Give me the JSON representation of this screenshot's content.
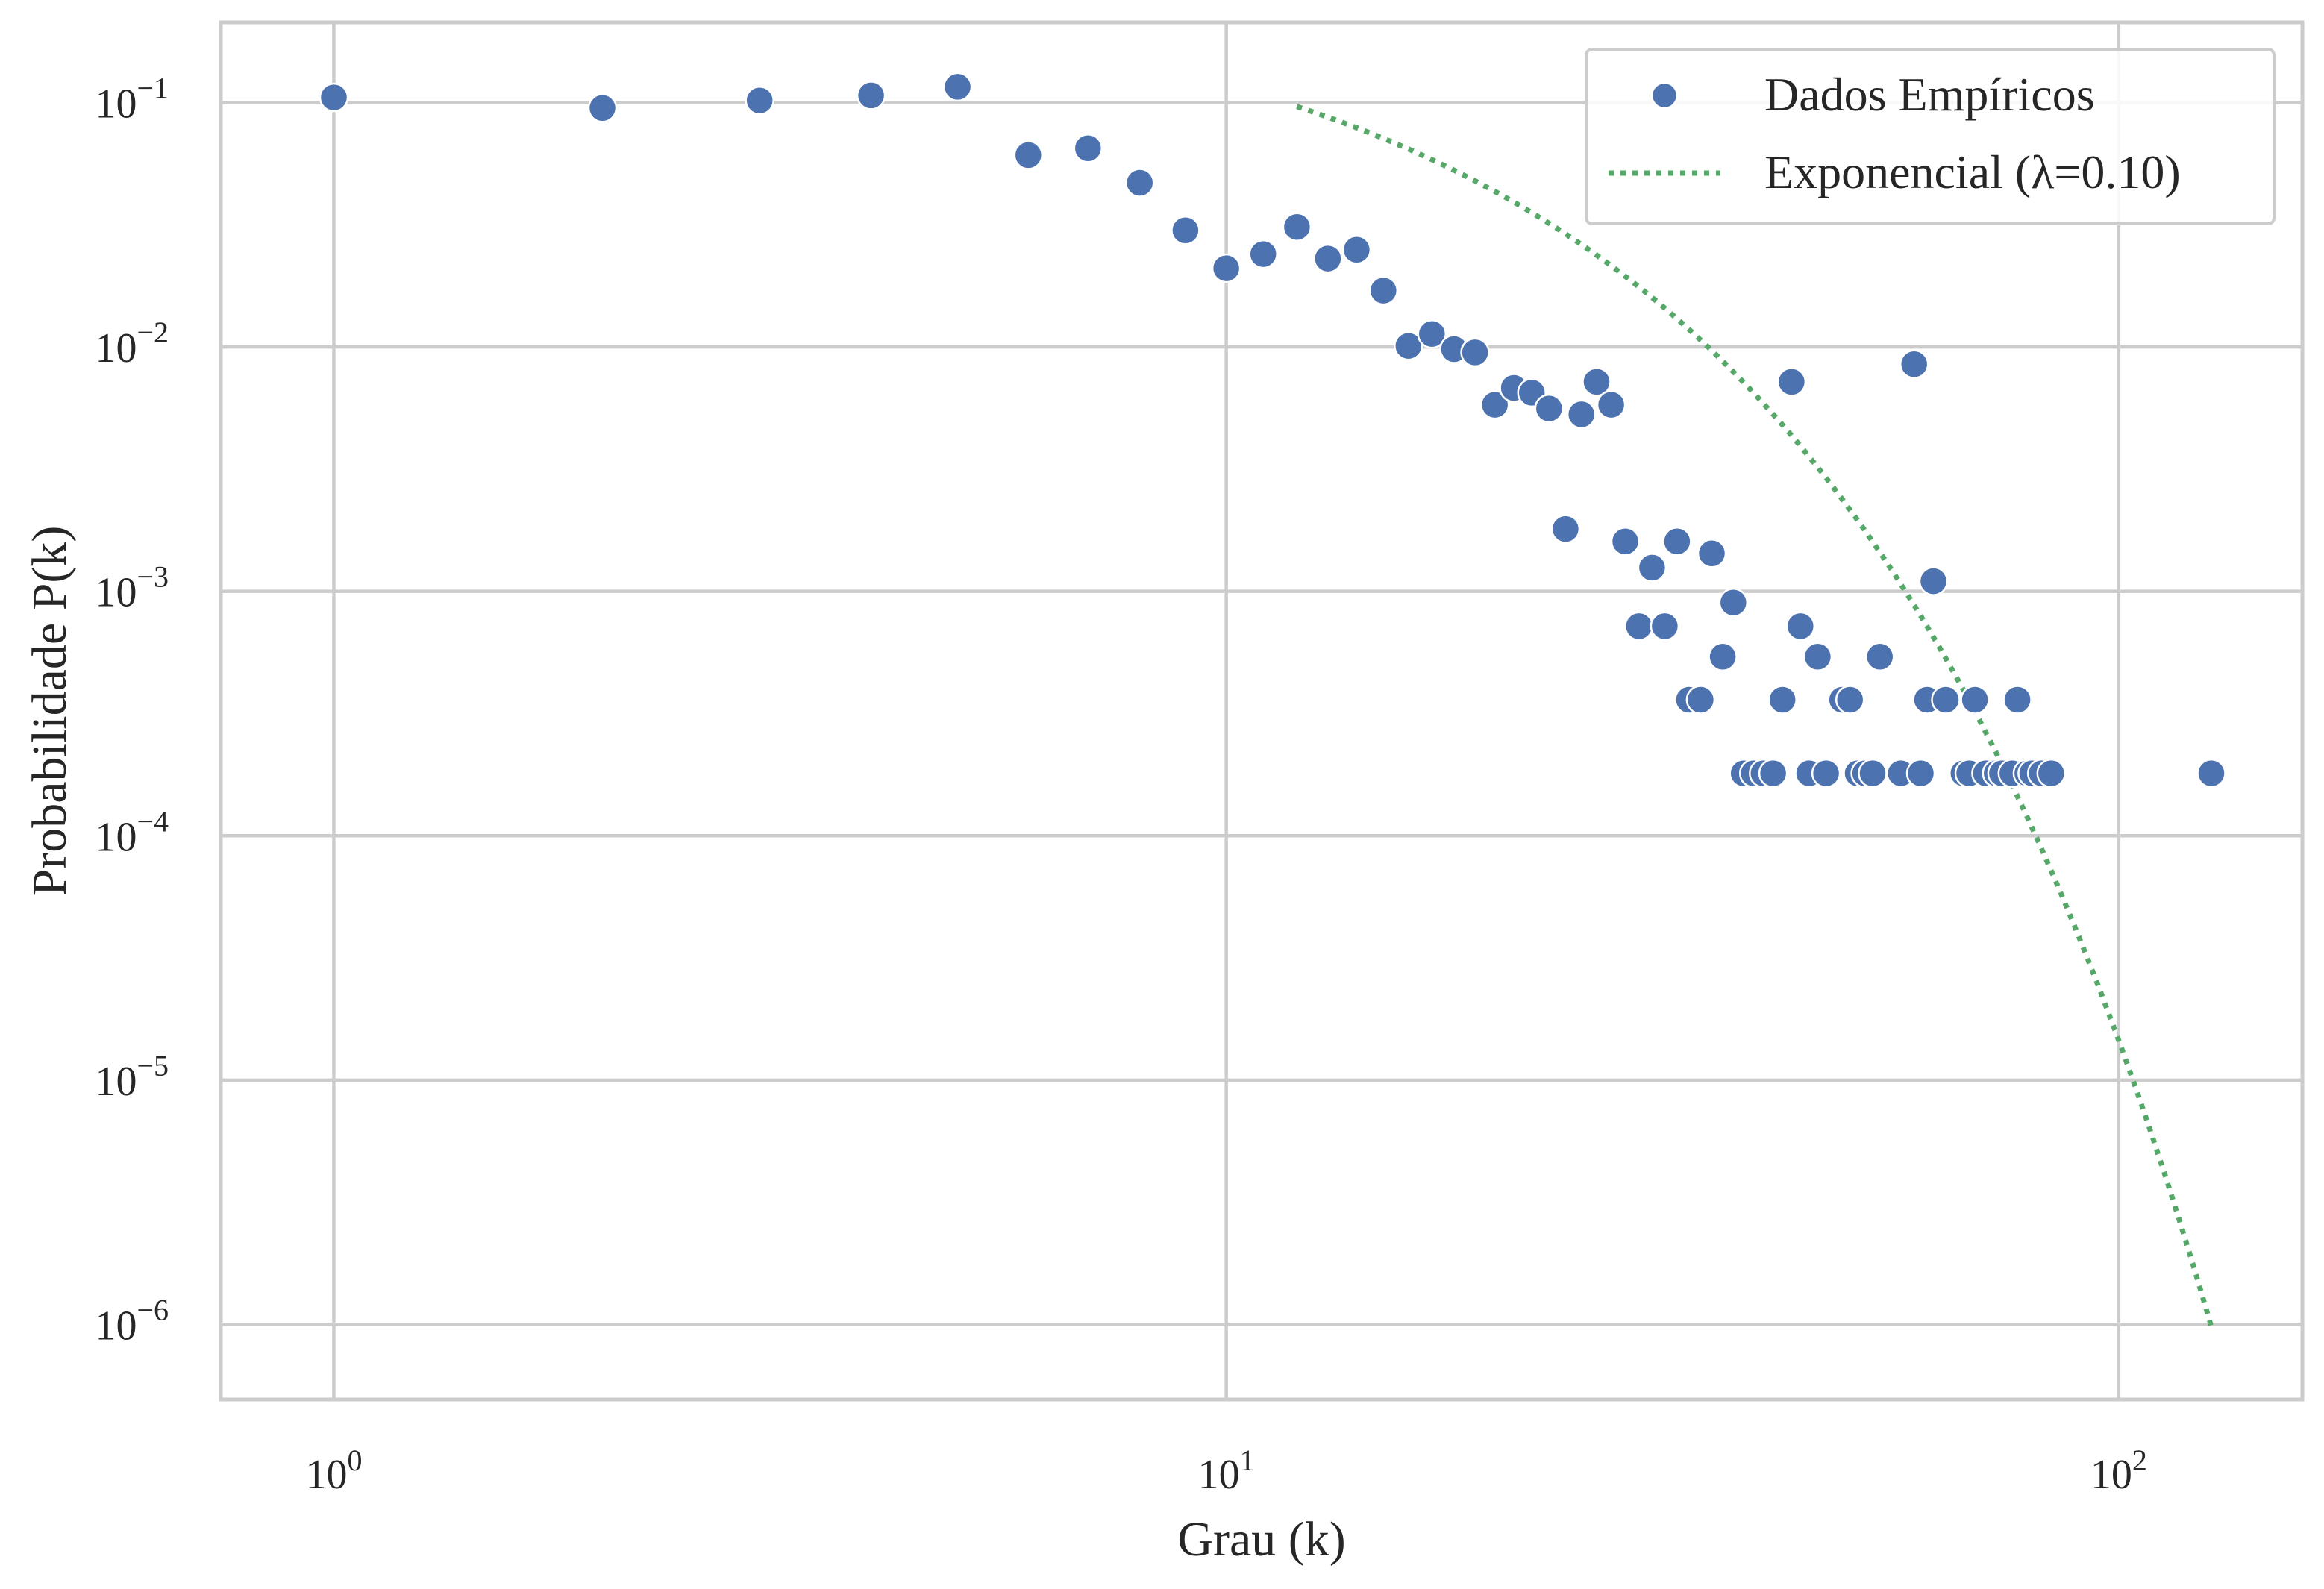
{
  "chart_data": {
    "type": "scatter",
    "title": "",
    "xlabel": "Grau (k)",
    "ylabel": "Probabilidade P(k)",
    "xscale": "log",
    "yscale": "log",
    "xlim": [
      0.75,
      160
    ],
    "ylim": [
      5e-07,
      0.21
    ],
    "grid": true,
    "legend_position": "top-right",
    "x_ticks": [
      {
        "value": 1,
        "base": "10",
        "exp": "0"
      },
      {
        "value": 10,
        "base": "10",
        "exp": "1"
      },
      {
        "value": 100,
        "base": "10",
        "exp": "2"
      }
    ],
    "y_ticks": [
      {
        "value": 0.1,
        "base": "10",
        "exp": "−1"
      },
      {
        "value": 0.01,
        "base": "10",
        "exp": "−2"
      },
      {
        "value": 0.001,
        "base": "10",
        "exp": "−3"
      },
      {
        "value": 0.0001,
        "base": "10",
        "exp": "−4"
      },
      {
        "value": 1e-05,
        "base": "10",
        "exp": "−5"
      },
      {
        "value": 1e-06,
        "base": "10",
        "exp": "−6"
      }
    ],
    "series": [
      {
        "name": "Dados Empíricos",
        "kind": "scatter",
        "color": "#4c72b0",
        "points": [
          [
            1,
            0.105
          ],
          [
            2,
            0.095
          ],
          [
            3,
            0.102
          ],
          [
            4,
            0.107
          ],
          [
            5,
            0.116
          ],
          [
            6,
            0.061
          ],
          [
            7,
            0.065
          ],
          [
            8,
            0.047
          ],
          [
            9,
            0.03
          ],
          [
            10,
            0.021
          ],
          [
            11,
            0.024
          ],
          [
            12,
            0.031
          ],
          [
            13,
            0.023
          ],
          [
            14,
            0.025
          ],
          [
            15,
            0.017
          ],
          [
            16,
            0.0101
          ],
          [
            17,
            0.0113
          ],
          [
            18,
            0.0098
          ],
          [
            19,
            0.0095
          ],
          [
            20,
            0.0058
          ],
          [
            21,
            0.0068
          ],
          [
            22,
            0.0065
          ],
          [
            23,
            0.0056
          ],
          [
            24,
            0.0018
          ],
          [
            25,
            0.0053
          ],
          [
            26,
            0.0072
          ],
          [
            27,
            0.0058
          ],
          [
            28,
            0.0016
          ],
          [
            29,
            0.00072
          ],
          [
            30,
            0.00125
          ],
          [
            31,
            0.00072
          ],
          [
            32,
            0.0016
          ],
          [
            33,
            0.00036
          ],
          [
            34,
            0.00036
          ],
          [
            35,
            0.00143
          ],
          [
            36,
            0.00054
          ],
          [
            37,
            0.0009
          ],
          [
            38,
            0.00018
          ],
          [
            39,
            0.00018
          ],
          [
            40,
            0.00018
          ],
          [
            41,
            0.00018
          ],
          [
            42,
            0.00036
          ],
          [
            43,
            0.0072
          ],
          [
            44,
            0.00072
          ],
          [
            45,
            0.00018
          ],
          [
            46,
            0.00054
          ],
          [
            47,
            0.00018
          ],
          [
            49,
            0.00036
          ],
          [
            50,
            0.00036
          ],
          [
            51,
            0.00018
          ],
          [
            52,
            0.00018
          ],
          [
            53,
            0.00018
          ],
          [
            54,
            0.00054
          ],
          [
            57,
            0.00018
          ],
          [
            59,
            0.0085
          ],
          [
            60,
            0.00018
          ],
          [
            61,
            0.00036
          ],
          [
            62,
            0.0011
          ],
          [
            64,
            0.00036
          ],
          [
            67,
            0.00018
          ],
          [
            68,
            0.00018
          ],
          [
            69,
            0.00036
          ],
          [
            71,
            0.00018
          ],
          [
            73,
            0.00018
          ],
          [
            74,
            0.00018
          ],
          [
            76,
            0.00018
          ],
          [
            77,
            0.00036
          ],
          [
            79,
            0.00018
          ],
          [
            80,
            0.00018
          ],
          [
            82,
            0.00018
          ],
          [
            84,
            0.00018
          ],
          [
            127,
            0.00018
          ]
        ]
      },
      {
        "name": "Exponencial (λ=0.10)",
        "kind": "line",
        "style": "dotted",
        "color": "#55a868",
        "lambda": 0.1,
        "amplitude": 0.32,
        "x_start": 12,
        "x_end": 127
      }
    ]
  }
}
